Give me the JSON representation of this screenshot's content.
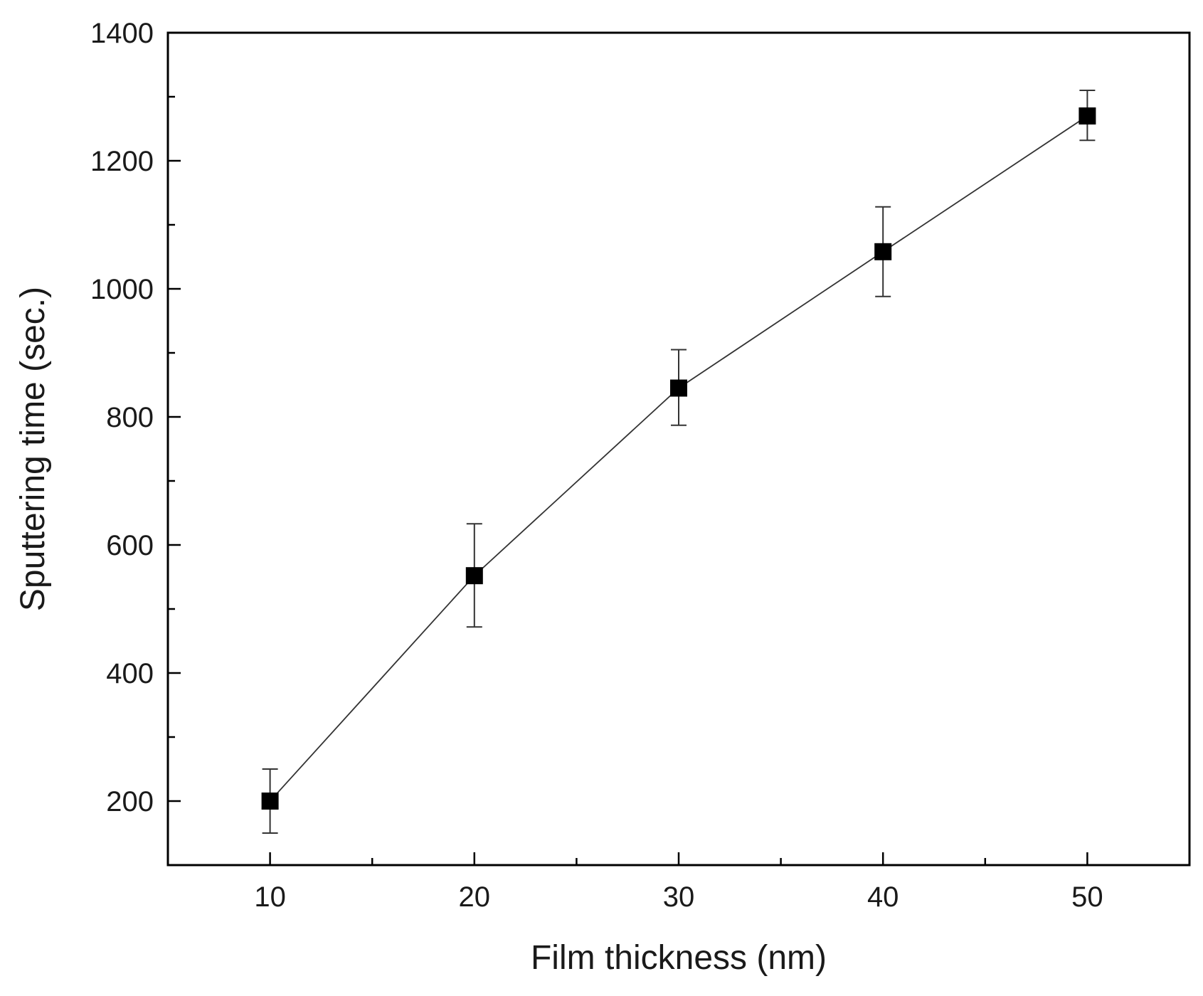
{
  "chart_data": {
    "type": "line",
    "title": "",
    "xlabel": "Film thickness (nm)",
    "ylabel": "Sputtering time (sec.)",
    "xlim": [
      5,
      55
    ],
    "ylim": [
      100,
      1400
    ],
    "x_ticks": [
      10,
      20,
      30,
      40,
      50
    ],
    "x_tick_labels": [
      "10",
      "20",
      "30",
      "40",
      "50"
    ],
    "x_minor_ticks": [
      15,
      25,
      35,
      45
    ],
    "y_ticks": [
      200,
      400,
      600,
      800,
      1000,
      1200,
      1400
    ],
    "y_tick_labels": [
      "200",
      "400",
      "600",
      "800",
      "1000",
      "1200",
      "1400"
    ],
    "y_minor_ticks": [
      300,
      500,
      700,
      900,
      1100,
      1300
    ],
    "grid": false,
    "legend": "none",
    "marker": "filled-square",
    "series": [
      {
        "x": [
          10,
          20,
          30,
          40,
          50
        ],
        "y": [
          200,
          552,
          845,
          1058,
          1270
        ],
        "error_low": [
          150,
          472,
          787,
          988,
          1232
        ],
        "error_high": [
          250,
          633,
          905,
          1128,
          1310
        ],
        "color": "#000000"
      }
    ]
  }
}
